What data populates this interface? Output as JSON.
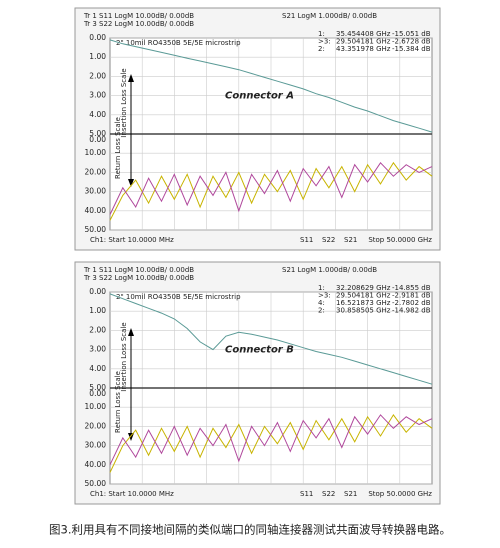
{
  "chart_data": [
    {
      "type": "line",
      "title": "Connector A",
      "subtitle": "2\" 10mil RO4350B 5E/5E microstrip",
      "header": [
        "Tr 1  S11 LogM 10.00dB/ 0.00dB",
        "Tr 3  S22 LogM 10.00dB/ 0.00dB",
        "S21 LogM 1.000dB/ 0.00dB"
      ],
      "markers": [
        {
          "color": "#9a8a00",
          "cells": [
            "1:",
            "35.454408 GHz",
            "-15.051 dB"
          ]
        },
        {
          "color": "#3f8c86",
          "cells": [
            ">3:",
            "29.504181 GHz",
            "-2.6728 dB"
          ]
        },
        {
          "color": "#b0489c",
          "cells": [
            "2:",
            "43.351978 GHz",
            "-15.384 dB"
          ]
        }
      ],
      "y_label": "Insertion Loss Scale",
      "y2_label": "Return Loss Scale",
      "footer_left": "Ch1: Start 10.0000 MHz",
      "footer_right": "Stop 50.0000 GHz",
      "xlim": [
        0.01,
        50
      ],
      "ylim": [
        10,
        0
      ],
      "yticks": [
        {
          "value": 0,
          "label": "0.00"
        },
        {
          "value": 1,
          "label": "1.00"
        },
        {
          "value": 2,
          "label": "2.00"
        },
        {
          "value": 3,
          "label": "3.00"
        },
        {
          "value": 4,
          "label": "4.00"
        },
        {
          "value": 5,
          "label": "5.00"
        }
      ],
      "y2lim": [
        50,
        -50
      ],
      "y2ticks": [
        {
          "value": 0,
          "label": "0.00"
        },
        {
          "value": 10,
          "label": "10.00"
        },
        {
          "value": 20,
          "label": "20.00"
        },
        {
          "value": 30,
          "label": "30.00"
        },
        {
          "value": 40,
          "label": "40.00"
        },
        {
          "value": 50,
          "label": "50.00"
        }
      ],
      "x": [
        0.01,
        2,
        4,
        6,
        8,
        10,
        12,
        14,
        16,
        18,
        20,
        22,
        24,
        26,
        28,
        30,
        32,
        34,
        36,
        38,
        40,
        42,
        44,
        46,
        48,
        50
      ],
      "series": [
        {
          "name": "S11",
          "color": "#c8b400",
          "axis": "y2",
          "values": [
            45,
            32,
            24,
            36,
            22,
            34,
            21,
            38,
            22,
            33,
            20,
            36,
            21,
            30,
            19,
            34,
            18,
            28,
            17,
            30,
            16,
            26,
            15,
            24,
            17,
            22
          ]
        },
        {
          "name": "S22",
          "color": "#b0489c",
          "axis": "y2",
          "values": [
            42,
            28,
            38,
            23,
            35,
            21,
            37,
            22,
            32,
            20,
            40,
            21,
            31,
            19,
            35,
            18,
            27,
            17,
            33,
            16,
            25,
            15,
            22,
            16,
            20,
            17
          ]
        },
        {
          "name": "S21",
          "color": "#5a9a96",
          "values": [
            0.1,
            0.3,
            0.45,
            0.6,
            0.75,
            0.9,
            1.05,
            1.2,
            1.35,
            1.5,
            1.65,
            1.85,
            2.05,
            2.25,
            2.45,
            2.65,
            2.9,
            3.1,
            3.35,
            3.6,
            3.8,
            4.05,
            4.3,
            4.5,
            4.7,
            4.9
          ]
        }
      ]
    },
    {
      "type": "line",
      "title": "Connector B",
      "subtitle": "2\" 10mil RO4350B 5E/5E microstrip",
      "header": [
        "Tr 1  S11 LogM 10.00dB/ 0.00dB",
        "Tr 3  S22 LogM 10.00dB/ 0.00dB",
        "S21 LogM 1.000dB/ 0.00dB"
      ],
      "markers": [
        {
          "color": "#9a8a00",
          "cells": [
            "1:",
            "32.208629 GHz",
            "-14.855 dB"
          ]
        },
        {
          "color": "#3f8c86",
          "cells": [
            ">3:",
            "29.504181 GHz",
            "-2.9181 dB"
          ]
        },
        {
          "color": "#3f8c86",
          "cells": [
            "4:",
            "16.521873 GHz",
            "-2.7802 dB"
          ]
        },
        {
          "color": "#b0489c",
          "cells": [
            "2:",
            "30.858505 GHz",
            "-14.982 dB"
          ]
        }
      ],
      "y_label": "Insertion Loss Scale",
      "y2_label": "Return Loss Scale",
      "footer_left": "Ch1: Start 10.0000 MHz",
      "footer_right": "Stop 50.0000 GHz",
      "xlim": [
        0.01,
        50
      ],
      "ylim": [
        10,
        0
      ],
      "yticks": [
        {
          "value": 0,
          "label": "0.00"
        },
        {
          "value": 1,
          "label": "1.00"
        },
        {
          "value": 2,
          "label": "2.00"
        },
        {
          "value": 3,
          "label": "3.00"
        },
        {
          "value": 4,
          "label": "4.00"
        },
        {
          "value": 5,
          "label": "5.00"
        }
      ],
      "y2lim": [
        50,
        -50
      ],
      "y2ticks": [
        {
          "value": 0,
          "label": "0.00"
        },
        {
          "value": 10,
          "label": "10.00"
        },
        {
          "value": 20,
          "label": "20.00"
        },
        {
          "value": 30,
          "label": "30.00"
        },
        {
          "value": 40,
          "label": "40.00"
        },
        {
          "value": 50,
          "label": "50.00"
        }
      ],
      "x": [
        0.01,
        2,
        4,
        6,
        8,
        10,
        12,
        14,
        16,
        18,
        20,
        22,
        24,
        26,
        28,
        30,
        32,
        34,
        36,
        38,
        40,
        42,
        44,
        46,
        48,
        50
      ],
      "series": [
        {
          "name": "S11",
          "color": "#c8b400",
          "axis": "y2",
          "values": [
            44,
            30,
            22,
            35,
            21,
            33,
            20,
            36,
            21,
            31,
            19,
            34,
            20,
            29,
            18,
            32,
            17,
            27,
            16,
            28,
            15,
            25,
            14,
            23,
            16,
            21
          ]
        },
        {
          "name": "S22",
          "color": "#b0489c",
          "axis": "y2",
          "values": [
            40,
            26,
            36,
            22,
            34,
            20,
            35,
            21,
            30,
            19,
            38,
            20,
            30,
            18,
            33,
            17,
            26,
            16,
            31,
            15,
            24,
            14,
            21,
            15,
            19,
            16
          ]
        },
        {
          "name": "S21",
          "color": "#5a9a96",
          "values": [
            0.1,
            0.35,
            0.6,
            0.85,
            1.1,
            1.4,
            1.9,
            2.6,
            3.0,
            2.3,
            2.1,
            2.2,
            2.35,
            2.5,
            2.7,
            2.9,
            3.1,
            3.25,
            3.4,
            3.6,
            3.8,
            4.0,
            4.2,
            4.4,
            4.6,
            4.8
          ]
        }
      ]
    }
  ],
  "caption": "图3.利用具有不同接地间隔的类似端口的同轴连接器测试共面波导转换器电路。"
}
